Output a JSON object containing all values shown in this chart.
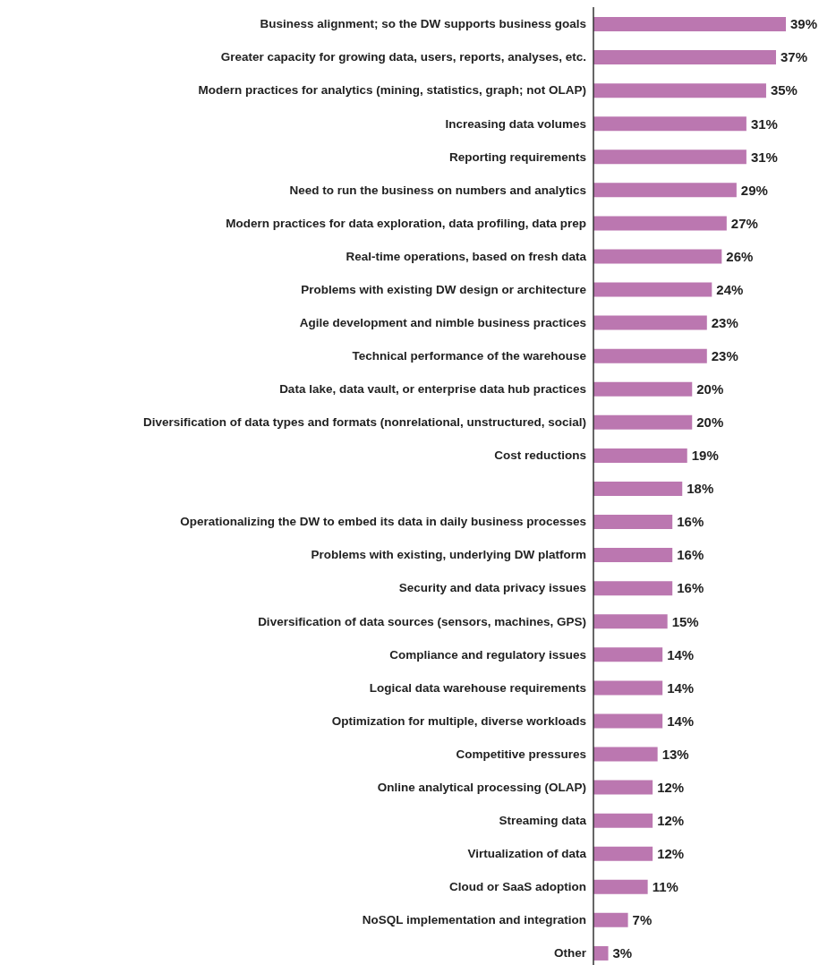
{
  "chart_data": {
    "type": "bar",
    "orientation": "horizontal",
    "color": "#bb77b0",
    "categories": [
      "Business alignment; so the DW supports business goals",
      "Greater capacity for growing data, users, reports, analyses, etc.",
      "Modern practices for analytics (mining, statistics, graph; not OLAP)",
      "Increasing data volumes",
      "Reporting requirements",
      "Need to run the business on numbers and analytics",
      "Modern practices for data exploration, data profiling, data prep",
      "Real-time operations, based on fresh data",
      "Problems with existing DW design or architecture",
      "Agile development and nimble business practices",
      "Technical performance of the warehouse",
      "Data lake, data vault, or enterprise data hub practices",
      "Diversification of data types and formats (nonrelational, unstructured, social)",
      "Cost reductions",
      null,
      "Operationalizing the DW to embed its data in daily business processes",
      "Problems with existing, underlying DW platform",
      "Security and data privacy issues",
      "Diversification of data sources (sensors, machines, GPS)",
      "Compliance and regulatory issues",
      "Logical data warehouse requirements",
      "Optimization for multiple, diverse workloads",
      "Competitive pressures",
      "Online analytical processing (OLAP)",
      "Streaming data",
      "Virtualization of data",
      "Cloud or SaaS adoption",
      "NoSQL implementation and integration",
      "Other"
    ],
    "values": [
      39,
      37,
      35,
      31,
      31,
      29,
      27,
      26,
      24,
      23,
      23,
      20,
      20,
      19,
      18,
      16,
      16,
      16,
      15,
      14,
      14,
      14,
      13,
      12,
      12,
      12,
      11,
      7,
      3
    ],
    "value_labels": [
      "39%",
      "37%",
      "35%",
      "31%",
      "31%",
      "29%",
      "27%",
      "26%",
      "24%",
      "23%",
      "23%",
      "20%",
      "20%",
      "19%",
      "18%",
      "16%",
      "16%",
      "16%",
      "15%",
      "14%",
      "14%",
      "14%",
      "13%",
      "12%",
      "12%",
      "12%",
      "11%",
      "7%",
      "3%"
    ]
  }
}
